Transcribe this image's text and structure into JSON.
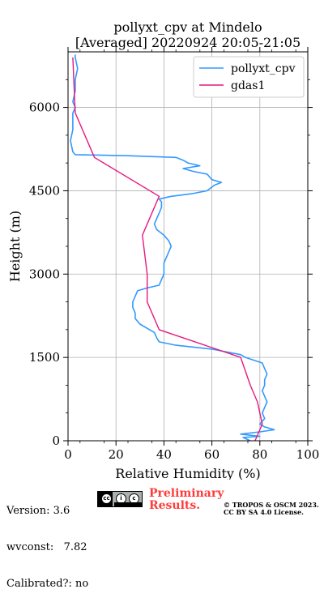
{
  "chart_data": {
    "type": "line",
    "title_line1": "pollyxt_cpv at Mindelo",
    "title_line2": "[Averaged] 20220924 20:05-21:05",
    "xlabel": "Relative Humidity (%)",
    "ylabel": "Height (m)",
    "xlim": [
      0,
      100
    ],
    "ylim": [
      0,
      7000
    ],
    "x_ticks": [
      "0",
      "20",
      "40",
      "60",
      "80",
      "100"
    ],
    "y_ticks": [
      "0",
      "1500",
      "3000",
      "4500",
      "6000"
    ],
    "grid": true,
    "legend_position": "top-right",
    "series": [
      {
        "name": "pollyxt_cpv",
        "color": "#3399ff",
        "points": [
          [
            76,
            0
          ],
          [
            73,
            60
          ],
          [
            80,
            80
          ],
          [
            72,
            120
          ],
          [
            80,
            160
          ],
          [
            86,
            200
          ],
          [
            82,
            250
          ],
          [
            80,
            300
          ],
          [
            82,
            400
          ],
          [
            81,
            500
          ],
          [
            82,
            600
          ],
          [
            83,
            700
          ],
          [
            82,
            800
          ],
          [
            81,
            900
          ],
          [
            82,
            1000
          ],
          [
            82,
            1100
          ],
          [
            83,
            1200
          ],
          [
            82,
            1300
          ],
          [
            81,
            1400
          ],
          [
            74,
            1500
          ],
          [
            72,
            1550
          ],
          [
            60,
            1650
          ],
          [
            45,
            1720
          ],
          [
            38,
            1780
          ],
          [
            37,
            1850
          ],
          [
            36,
            1950
          ],
          [
            34,
            2000
          ],
          [
            30,
            2100
          ],
          [
            28,
            2200
          ],
          [
            28,
            2300
          ],
          [
            27,
            2400
          ],
          [
            27,
            2500
          ],
          [
            28,
            2600
          ],
          [
            29,
            2700
          ],
          [
            33,
            2750
          ],
          [
            38,
            2800
          ],
          [
            39,
            2900
          ],
          [
            40,
            3000
          ],
          [
            40,
            3100
          ],
          [
            40,
            3200
          ],
          [
            41,
            3300
          ],
          [
            42,
            3400
          ],
          [
            43,
            3500
          ],
          [
            42,
            3600
          ],
          [
            40,
            3700
          ],
          [
            37,
            3800
          ],
          [
            36,
            3900
          ],
          [
            37,
            4000
          ],
          [
            38,
            4100
          ],
          [
            39,
            4200
          ],
          [
            39,
            4300
          ],
          [
            38,
            4350
          ],
          [
            43,
            4400
          ],
          [
            52,
            4450
          ],
          [
            58,
            4500
          ],
          [
            61,
            4600
          ],
          [
            64,
            4650
          ],
          [
            60,
            4700
          ],
          [
            58,
            4800
          ],
          [
            52,
            4850
          ],
          [
            48,
            4900
          ],
          [
            55,
            4950
          ],
          [
            50,
            5000
          ],
          [
            48,
            5050
          ],
          [
            45,
            5100
          ],
          [
            25,
            5130
          ],
          [
            3,
            5150
          ],
          [
            2,
            5200
          ],
          [
            1,
            5400
          ],
          [
            2,
            5600
          ],
          [
            2,
            5800
          ],
          [
            2,
            5900
          ],
          [
            3,
            6000
          ],
          [
            2,
            6100
          ],
          [
            3,
            6300
          ],
          [
            3,
            6500
          ],
          [
            4,
            6700
          ],
          [
            3,
            6900
          ],
          [
            3,
            6950
          ]
        ]
      },
      {
        "name": "gdas1",
        "color": "#e6197f",
        "points": [
          [
            78,
            0
          ],
          [
            81,
            300
          ],
          [
            79,
            700
          ],
          [
            76,
            1000
          ],
          [
            72,
            1500
          ],
          [
            38,
            2000
          ],
          [
            33,
            2500
          ],
          [
            33,
            3000
          ],
          [
            31,
            3700
          ],
          [
            37,
            4300
          ],
          [
            38,
            4400
          ],
          [
            11,
            5100
          ],
          [
            3,
            5900
          ],
          [
            2,
            6900
          ]
        ]
      }
    ]
  },
  "footer": {
    "version": "Version: 3.6",
    "wvconst": "wvconst:   7.82",
    "calibrated": "Calibrated?: no",
    "preliminary_line1": "Preliminary",
    "preliminary_line2": "Results.",
    "copyright_line1": "© TROPOS & OSCM 2023.",
    "copyright_line2": "CC BY SA 4.0 License.",
    "license_icon": "cc-by-sa-badge"
  }
}
